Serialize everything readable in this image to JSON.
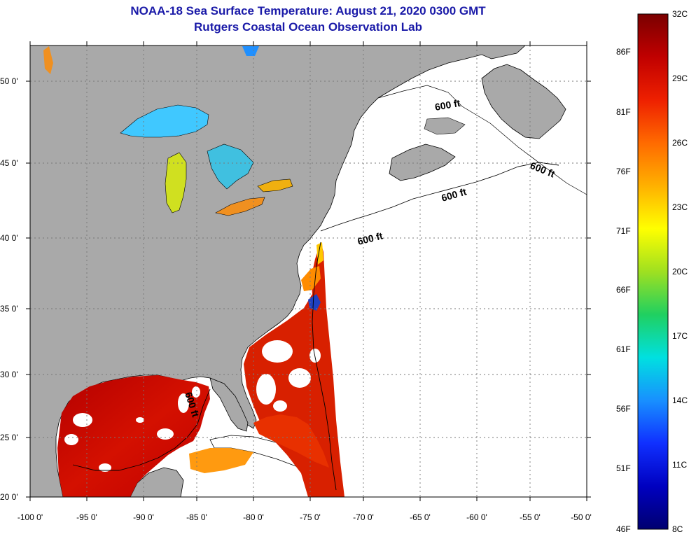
{
  "title": {
    "line1": "NOAA-18 Sea Surface Temperature:  August 21, 2020 0300 GMT",
    "line2": "Rutgers Coastal Ocean Observation Lab"
  },
  "map": {
    "lat_labels": [
      "50 0'",
      "45 0'",
      "40 0'",
      "35 0'",
      "30 0'",
      "25 0'",
      "20 0'"
    ],
    "lon_labels": [
      "-100 0'",
      "-95 0'",
      "-90 0'",
      "-85 0'",
      "-80 0'",
      "-75 0'",
      "-70 0'",
      "-65 0'",
      "-60 0'",
      "-55 0'",
      "-50 0'"
    ],
    "isobath_label": "600 ft",
    "colors": {
      "land": "#a9a9a9",
      "ocean": "#ffffff",
      "grid": "#777777"
    }
  },
  "colorbar": {
    "f_labels": [
      "86F",
      "81F",
      "76F",
      "71F",
      "66F",
      "61F",
      "56F",
      "51F",
      "46F"
    ],
    "c_labels": [
      "32C",
      "29C",
      "26C",
      "23C",
      "20C",
      "17C",
      "14C",
      "11C",
      "8C"
    ],
    "stops": [
      "#7a0000",
      "#c00000",
      "#ee2000",
      "#ff6a00",
      "#ffb000",
      "#ffff00",
      "#9fe020",
      "#20d060",
      "#00e0e0",
      "#1890ff",
      "#1030ff",
      "#0000c0",
      "#000070"
    ]
  }
}
